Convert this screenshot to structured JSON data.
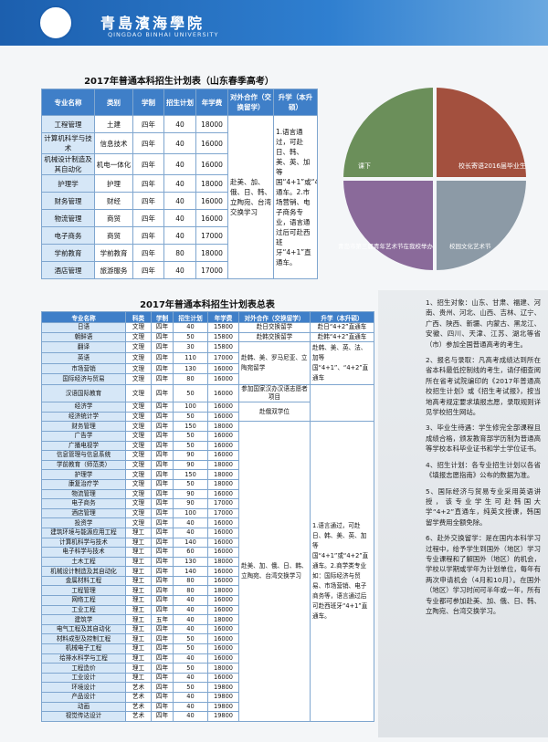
{
  "header": {
    "title": "青島濱海學院",
    "subtitle": "QINGDAO BINHAI UNIVERSITY"
  },
  "table1": {
    "title": "2017年普通本科招生计划表（山东春季高考）",
    "columns": [
      "专业名称",
      "类别",
      "学制",
      "招生计划",
      "年学费",
      "对外合作（交换留学）",
      "升学（本升硕）"
    ],
    "rows": [
      [
        "工程管理",
        "土建",
        "四年",
        "40",
        "18000"
      ],
      [
        "计算机科学与技术",
        "信息技术",
        "四年",
        "40",
        "16000"
      ],
      [
        "机械设计制造及其自动化",
        "机电一体化",
        "四年",
        "40",
        "16000"
      ],
      [
        "护理学",
        "护理",
        "四年",
        "40",
        "18000"
      ],
      [
        "财务管理",
        "财经",
        "四年",
        "40",
        "16000"
      ],
      [
        "物流管理",
        "商贸",
        "四年",
        "40",
        "16000"
      ],
      [
        "电子商务",
        "商贸",
        "四年",
        "40",
        "17000"
      ],
      [
        "学前教育",
        "学前教育",
        "四年",
        "80",
        "18000"
      ],
      [
        "酒店管理",
        "旅游服务",
        "四年",
        "40",
        "17000"
      ]
    ],
    "exchange": "赴美、加、俄、日、韩、立陶宛、台湾交换学习",
    "further": "1.语言通过，可赴日、韩、美、英、加等国“4+1”或“4+2”直通车。2.市场营销、电子商务专业，语言通过后可赴西班牙“4+1”直通车。"
  },
  "photos": {
    "captions": [
      "课下",
      "校长寄语2016届毕业生",
      "青岛市第三届青年艺术节在我校举办",
      "校园文化艺术节"
    ]
  },
  "table2": {
    "title": "2017年普通本科招生计划表总表",
    "columns": [
      "专业名称",
      "科类",
      "学制",
      "招生计划",
      "年学费",
      "对外合作（交换留学）",
      "升学（本升硕）"
    ],
    "rows": [
      [
        "日语",
        "文理",
        "四年",
        "40",
        "15800"
      ],
      [
        "朝鲜语",
        "文理",
        "四年",
        "50",
        "15800"
      ],
      [
        "翻译",
        "文理",
        "四年",
        "30",
        "15800"
      ],
      [
        "英语",
        "文理",
        "四年",
        "110",
        "17000"
      ],
      [
        "市场营销",
        "文理",
        "四年",
        "130",
        "16000"
      ],
      [
        "国际经济与贸易",
        "文理",
        "四年",
        "80",
        "16000"
      ],
      [
        "汉语国际教育",
        "文理",
        "四年",
        "50",
        "16000"
      ],
      [
        "经济学",
        "文理",
        "四年",
        "100",
        "16000"
      ],
      [
        "经济统计学",
        "文理",
        "四年",
        "50",
        "16000"
      ],
      [
        "财务管理",
        "文理",
        "四年",
        "150",
        "18000"
      ],
      [
        "广告学",
        "文理",
        "四年",
        "50",
        "16000"
      ],
      [
        "广播电视学",
        "文理",
        "四年",
        "50",
        "16000"
      ],
      [
        "信息管理与信息系统",
        "文理",
        "四年",
        "90",
        "16000"
      ],
      [
        "学前教育（师范类）",
        "文理",
        "四年",
        "90",
        "18000"
      ],
      [
        "护理学",
        "文理",
        "四年",
        "150",
        "18000"
      ],
      [
        "康复治疗学",
        "文理",
        "四年",
        "50",
        "18000"
      ],
      [
        "物流管理",
        "文理",
        "四年",
        "90",
        "16000"
      ],
      [
        "电子商务",
        "文理",
        "四年",
        "90",
        "17000"
      ],
      [
        "酒店管理",
        "文理",
        "四年",
        "100",
        "17000"
      ],
      [
        "投资学",
        "文理",
        "四年",
        "40",
        "16000"
      ],
      [
        "建筑环境与能源应用工程",
        "理工",
        "四年",
        "40",
        "16000"
      ],
      [
        "计算机科学与技术",
        "理工",
        "四年",
        "140",
        "16000"
      ],
      [
        "电子科学与技术",
        "理工",
        "四年",
        "60",
        "16000"
      ],
      [
        "土木工程",
        "理工",
        "四年",
        "130",
        "18000"
      ],
      [
        "机械设计制造及其自动化",
        "理工",
        "四年",
        "140",
        "16000"
      ],
      [
        "金属材料工程",
        "理工",
        "四年",
        "80",
        "16000"
      ],
      [
        "工程管理",
        "理工",
        "四年",
        "80",
        "18000"
      ],
      [
        "网络工程",
        "理工",
        "四年",
        "40",
        "16000"
      ],
      [
        "工业工程",
        "理工",
        "四年",
        "40",
        "16000"
      ],
      [
        "建筑学",
        "理工",
        "五年",
        "40",
        "18000"
      ],
      [
        "电气工程及其自动化",
        "理工",
        "四年",
        "40",
        "16000"
      ],
      [
        "材料成型及控制工程",
        "理工",
        "四年",
        "50",
        "16000"
      ],
      [
        "机械电子工程",
        "理工",
        "四年",
        "50",
        "16000"
      ],
      [
        "给排水科学与工程",
        "理工",
        "四年",
        "40",
        "16000"
      ],
      [
        "工程造价",
        "理工",
        "四年",
        "50",
        "18000"
      ],
      [
        "工业设计",
        "理工",
        "四年",
        "40",
        "16000"
      ],
      [
        "环境设计",
        "艺术",
        "四年",
        "50",
        "19800"
      ],
      [
        "产品设计",
        "艺术",
        "四年",
        "40",
        "19800"
      ],
      [
        "动画",
        "艺术",
        "四年",
        "40",
        "19800"
      ],
      [
        "视觉传达设计",
        "艺术",
        "四年",
        "40",
        "19800"
      ]
    ],
    "exchange": [
      "赴日交换留学",
      "赴韩交换留学",
      "赴韩、美、罗马尼亚、立陶宛留学",
      "参加国家汉办汉语志愿者项目",
      "赴俄双学位",
      "赴美、加、俄、日、韩、立陶宛、台湾交换学习"
    ],
    "further": [
      "赴日“4+2”直通车",
      "赴韩“4+2”直通车",
      "赴韩、美、英、法、加等国“4+1”、“4+2”直通车",
      "1.语言通过，可赴日、韩、美、英、加等国“4+1”或“4+2”直通车。2.商学类专业如：国际经济与贸易、市场营销、电子商务等，语言通过后可赴西班牙“4+1”直通车。"
    ]
  },
  "notes": [
    "1、招生对象：山东、甘肃、福建、河南、贵州、河北、山西、吉林、辽宁、广西、陕西、新疆、内蒙古、黑龙江、安徽、四川、天津、江苏、湖北等省（市）参加全国普通高考的考生。",
    "2、报名与录取：凡高考成绩达到所在省本科最低控制线的考生，请仔细查阅所在省考试院编印的《2017年普通高校招生计划》或《招生考试报》，按当地高考规定要求填报志愿，录取规则详见学校招生网站。",
    "3、毕业生待遇：学生修完全部课程且成绩合格，颁发教育部学历制为普通高等学校本科毕业证书和学士学位证书。",
    "4、招生计划：各专业招生计划以各省《填报志愿指南》公布的数据为准。",
    "5、国际经济与贸易专业采用英语讲授，该专业学生可赴韩国大学“4+2”直通车，纯英文授课，韩国留学费用全额免除。",
    "6、赴外交换留学：是在国内本科学习过程中，给予学生到国外（地区）学习专业课程和了解国外（地区）的机会，学校以学期或学年为计划单位，每年有两次申请机会（4月和10月）。在国外（地区）学习时间可半年或一年，所有专业都可参加赴美、加、俄、日、韩、立陶宛、台湾交换学习。"
  ]
}
